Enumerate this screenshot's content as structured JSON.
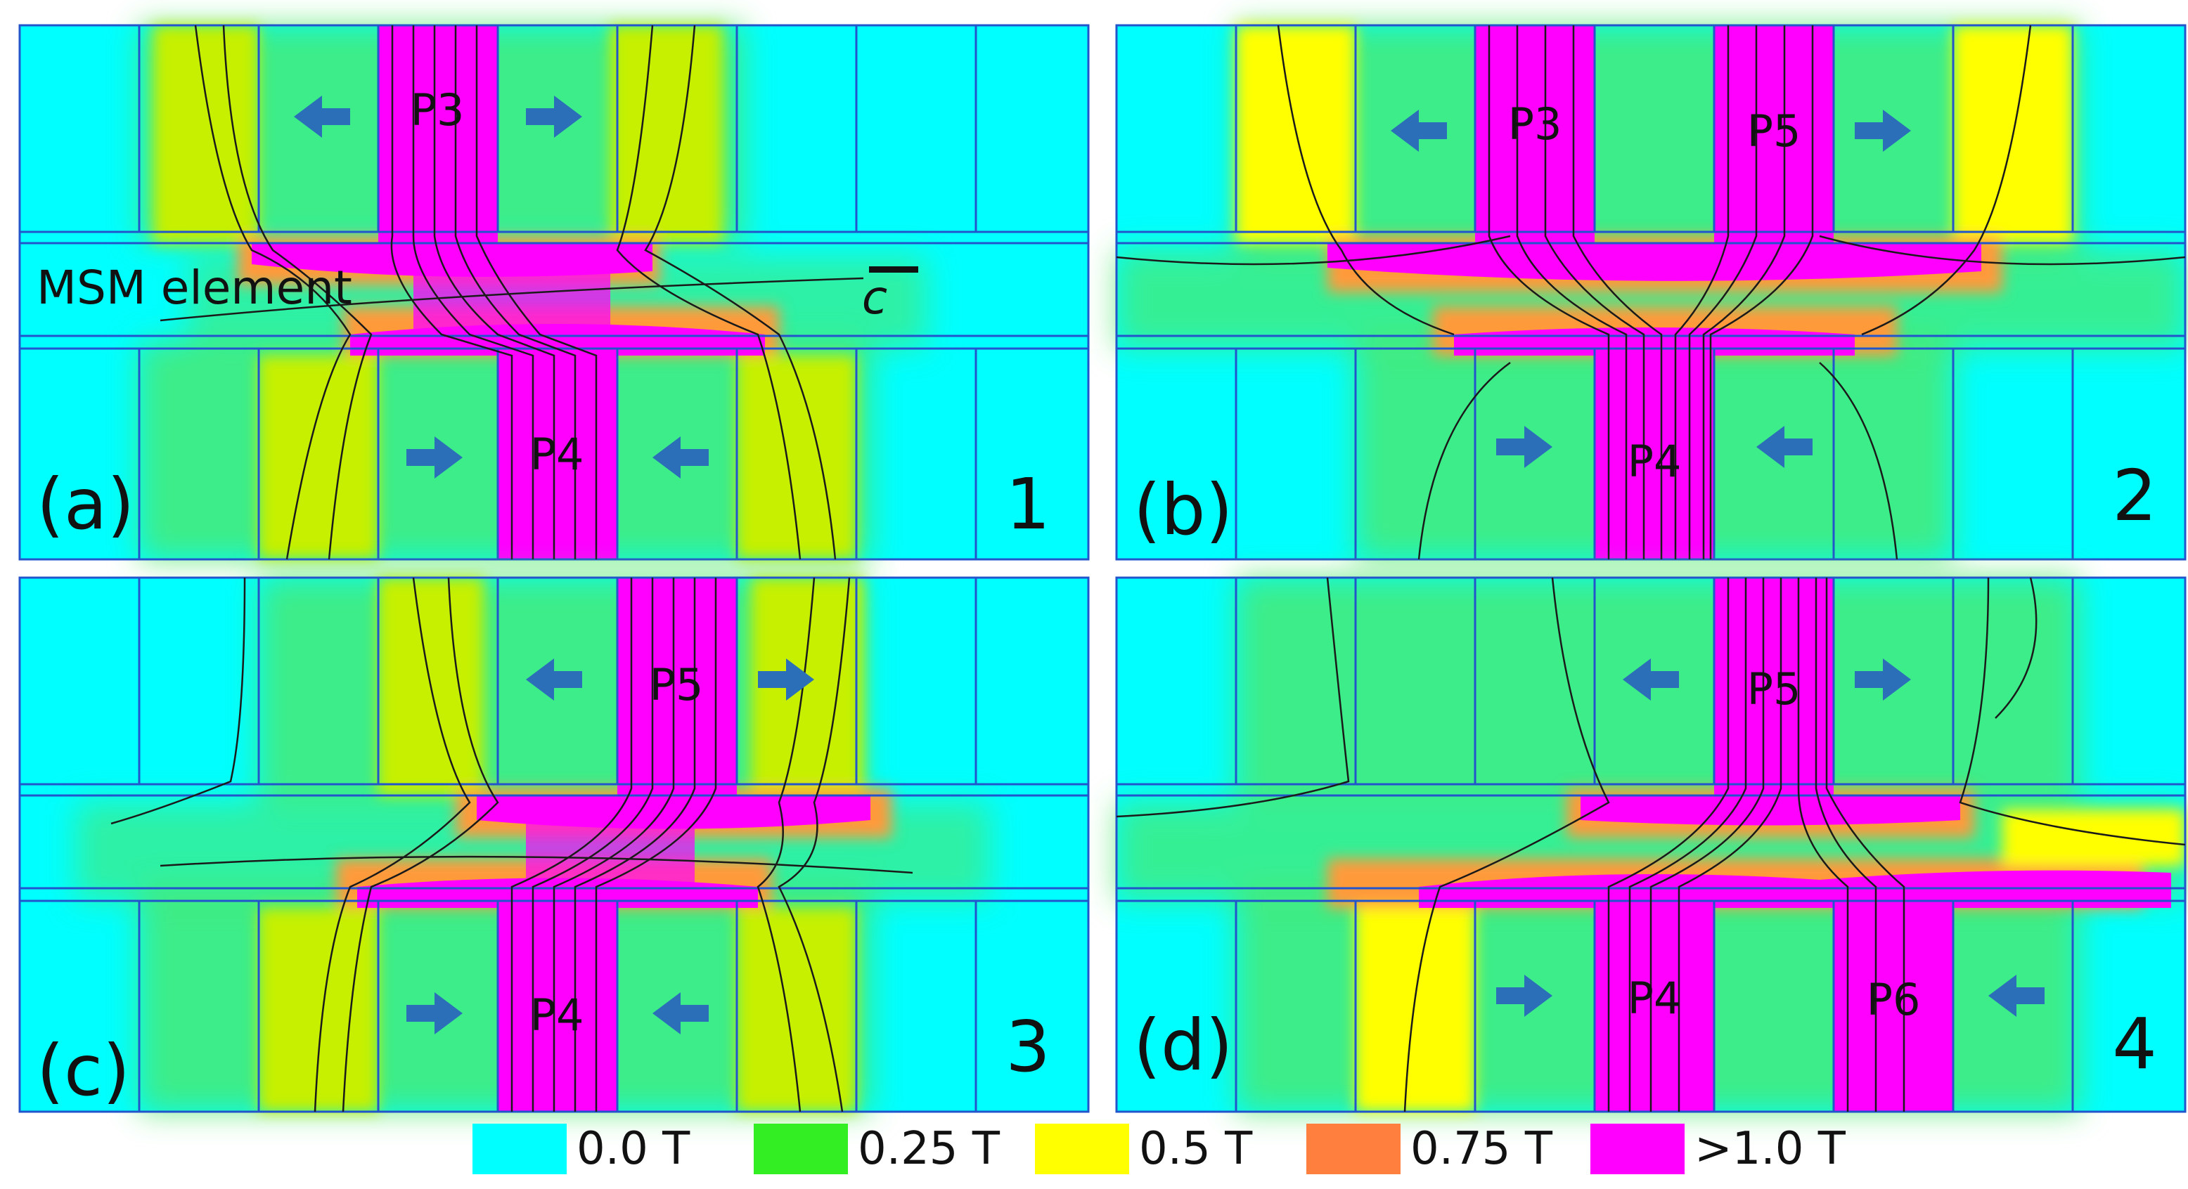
{
  "panels": [
    {
      "label": "(a)",
      "number": "1",
      "poles": [
        "P3",
        "P4"
      ]
    },
    {
      "label": "(b)",
      "number": "2",
      "poles": [
        "P3",
        "P5",
        "P4"
      ]
    },
    {
      "label": "(c)",
      "number": "3",
      "poles": [
        "P5",
        "P4"
      ]
    },
    {
      "label": "(d)",
      "number": "4",
      "poles": [
        "P5",
        "P4",
        "P6"
      ]
    }
  ],
  "annotations": {
    "element": "MSM element",
    "axis": "c"
  },
  "legend": [
    {
      "label": "0.0 T",
      "color": "#00ffff"
    },
    {
      "label": "0.25 T",
      "color": "#33ee22"
    },
    {
      "label": "0.5 T",
      "color": "#ffff00"
    },
    {
      "label": "0.75 T",
      "color": "#ff7f3f"
    },
    {
      "label": ">1.0 T",
      "color": "#ff00ff"
    }
  ],
  "colors": {
    "outline": "#2255cc",
    "arrow": "#2a6fb8",
    "fieldline": "#1a1a1a",
    "low": "#00ffff",
    "green": "#33ee22",
    "yellow": "#ffff00",
    "orange": "#ff7f3f",
    "magenta": "#ff00ff"
  }
}
